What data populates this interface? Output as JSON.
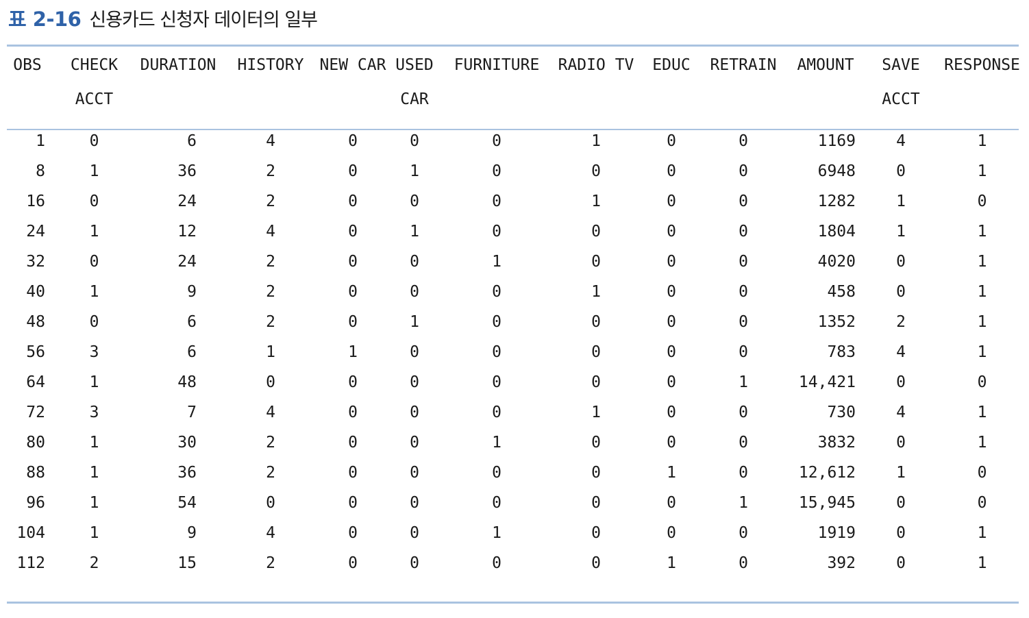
{
  "caption": {
    "number": "표 2-16",
    "title": "신용카드 신청자 데이터의 일부"
  },
  "columns": [
    {
      "line1": "OBS",
      "line2": ""
    },
    {
      "line1": "CHECK",
      "line2": "ACCT"
    },
    {
      "line1": "DURATION",
      "line2": ""
    },
    {
      "line1": "HISTORY",
      "line2": ""
    },
    {
      "line1": "NEW CAR",
      "line2": ""
    },
    {
      "line1": "USED",
      "line2": "CAR"
    },
    {
      "line1": "FURNITURE",
      "line2": ""
    },
    {
      "line1": "RADIO TV",
      "line2": ""
    },
    {
      "line1": "EDUC",
      "line2": ""
    },
    {
      "line1": "RETRAIN",
      "line2": ""
    },
    {
      "line1": "AMOUNT",
      "line2": ""
    },
    {
      "line1": "SAVE",
      "line2": "ACCT"
    },
    {
      "line1": "RESPONSE",
      "line2": ""
    }
  ],
  "rows": [
    [
      "1",
      "0",
      "6",
      "4",
      "0",
      "0",
      "0",
      "1",
      "0",
      "0",
      "1169",
      "4",
      "1"
    ],
    [
      "8",
      "1",
      "36",
      "2",
      "0",
      "1",
      "0",
      "0",
      "0",
      "0",
      "6948",
      "0",
      "1"
    ],
    [
      "16",
      "0",
      "24",
      "2",
      "0",
      "0",
      "0",
      "1",
      "0",
      "0",
      "1282",
      "1",
      "0"
    ],
    [
      "24",
      "1",
      "12",
      "4",
      "0",
      "1",
      "0",
      "0",
      "0",
      "0",
      "1804",
      "1",
      "1"
    ],
    [
      "32",
      "0",
      "24",
      "2",
      "0",
      "0",
      "1",
      "0",
      "0",
      "0",
      "4020",
      "0",
      "1"
    ],
    [
      "40",
      "1",
      "9",
      "2",
      "0",
      "0",
      "0",
      "1",
      "0",
      "0",
      "458",
      "0",
      "1"
    ],
    [
      "48",
      "0",
      "6",
      "2",
      "0",
      "1",
      "0",
      "0",
      "0",
      "0",
      "1352",
      "2",
      "1"
    ],
    [
      "56",
      "3",
      "6",
      "1",
      "1",
      "0",
      "0",
      "0",
      "0",
      "0",
      "783",
      "4",
      "1"
    ],
    [
      "64",
      "1",
      "48",
      "0",
      "0",
      "0",
      "0",
      "0",
      "0",
      "1",
      "14,421",
      "0",
      "0"
    ],
    [
      "72",
      "3",
      "7",
      "4",
      "0",
      "0",
      "0",
      "1",
      "0",
      "0",
      "730",
      "4",
      "1"
    ],
    [
      "80",
      "1",
      "30",
      "2",
      "0",
      "0",
      "1",
      "0",
      "0",
      "0",
      "3832",
      "0",
      "1"
    ],
    [
      "88",
      "1",
      "36",
      "2",
      "0",
      "0",
      "0",
      "0",
      "1",
      "0",
      "12,612",
      "1",
      "0"
    ],
    [
      "96",
      "1",
      "54",
      "0",
      "0",
      "0",
      "0",
      "0",
      "0",
      "1",
      "15,945",
      "0",
      "0"
    ],
    [
      "104",
      "1",
      "9",
      "4",
      "0",
      "0",
      "1",
      "0",
      "0",
      "0",
      "1919",
      "0",
      "1"
    ],
    [
      "112",
      "2",
      "15",
      "2",
      "0",
      "0",
      "0",
      "0",
      "1",
      "0",
      "392",
      "0",
      "1"
    ]
  ]
}
